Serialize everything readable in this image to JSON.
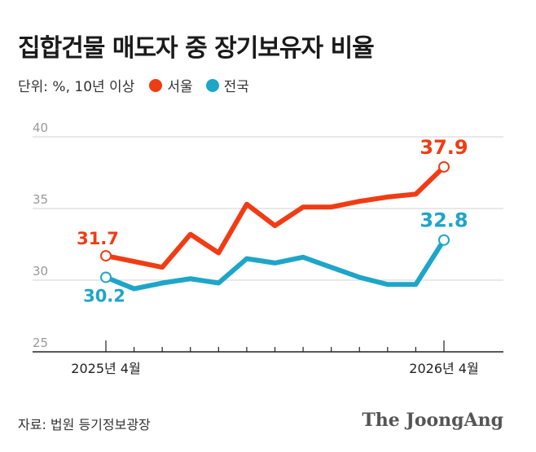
{
  "title": "집합건물 매도자 중 장기보유자 비율",
  "unit_label": "단위: %, 10년 이상",
  "source": "자료: 법원 등기정보광장",
  "brand": "The JoongAng",
  "colors": {
    "seoul": "#f03c14",
    "national": "#1ea5c8",
    "grid": "#d0d0d0",
    "axis": "#222222"
  },
  "chart_data": {
    "type": "line",
    "x": [
      "2025-04",
      "2025-05",
      "2025-06",
      "2025-07",
      "2025-08",
      "2025-09",
      "2025-10",
      "2025-11",
      "2025-12",
      "2026-01",
      "2026-02",
      "2026-03",
      "2026-04"
    ],
    "x_tick_labels": [
      {
        "x": "2025-04",
        "label": "2025년 4월"
      },
      {
        "x": "2026-04",
        "label": "2026년 4월"
      }
    ],
    "y_ticks": [
      25,
      30,
      35,
      40
    ],
    "ylim": [
      25,
      40
    ],
    "legend_placement": "top-left",
    "grid": true,
    "series": [
      {
        "name": "서울",
        "color": "#f03c14",
        "values": [
          31.7,
          31.3,
          30.9,
          33.2,
          31.9,
          35.3,
          33.8,
          35.1,
          35.1,
          35.5,
          35.8,
          36.0,
          37.9
        ],
        "labels": [
          {
            "index": 0,
            "text": "31.7"
          },
          {
            "index": 12,
            "text": "37.9"
          }
        ]
      },
      {
        "name": "전국",
        "color": "#1ea5c8",
        "values": [
          30.2,
          29.4,
          29.8,
          30.1,
          29.8,
          31.5,
          31.2,
          31.6,
          30.9,
          30.2,
          29.7,
          29.7,
          32.8
        ],
        "labels": [
          {
            "index": 0,
            "text": "30.2"
          },
          {
            "index": 12,
            "text": "32.8"
          }
        ]
      }
    ]
  }
}
